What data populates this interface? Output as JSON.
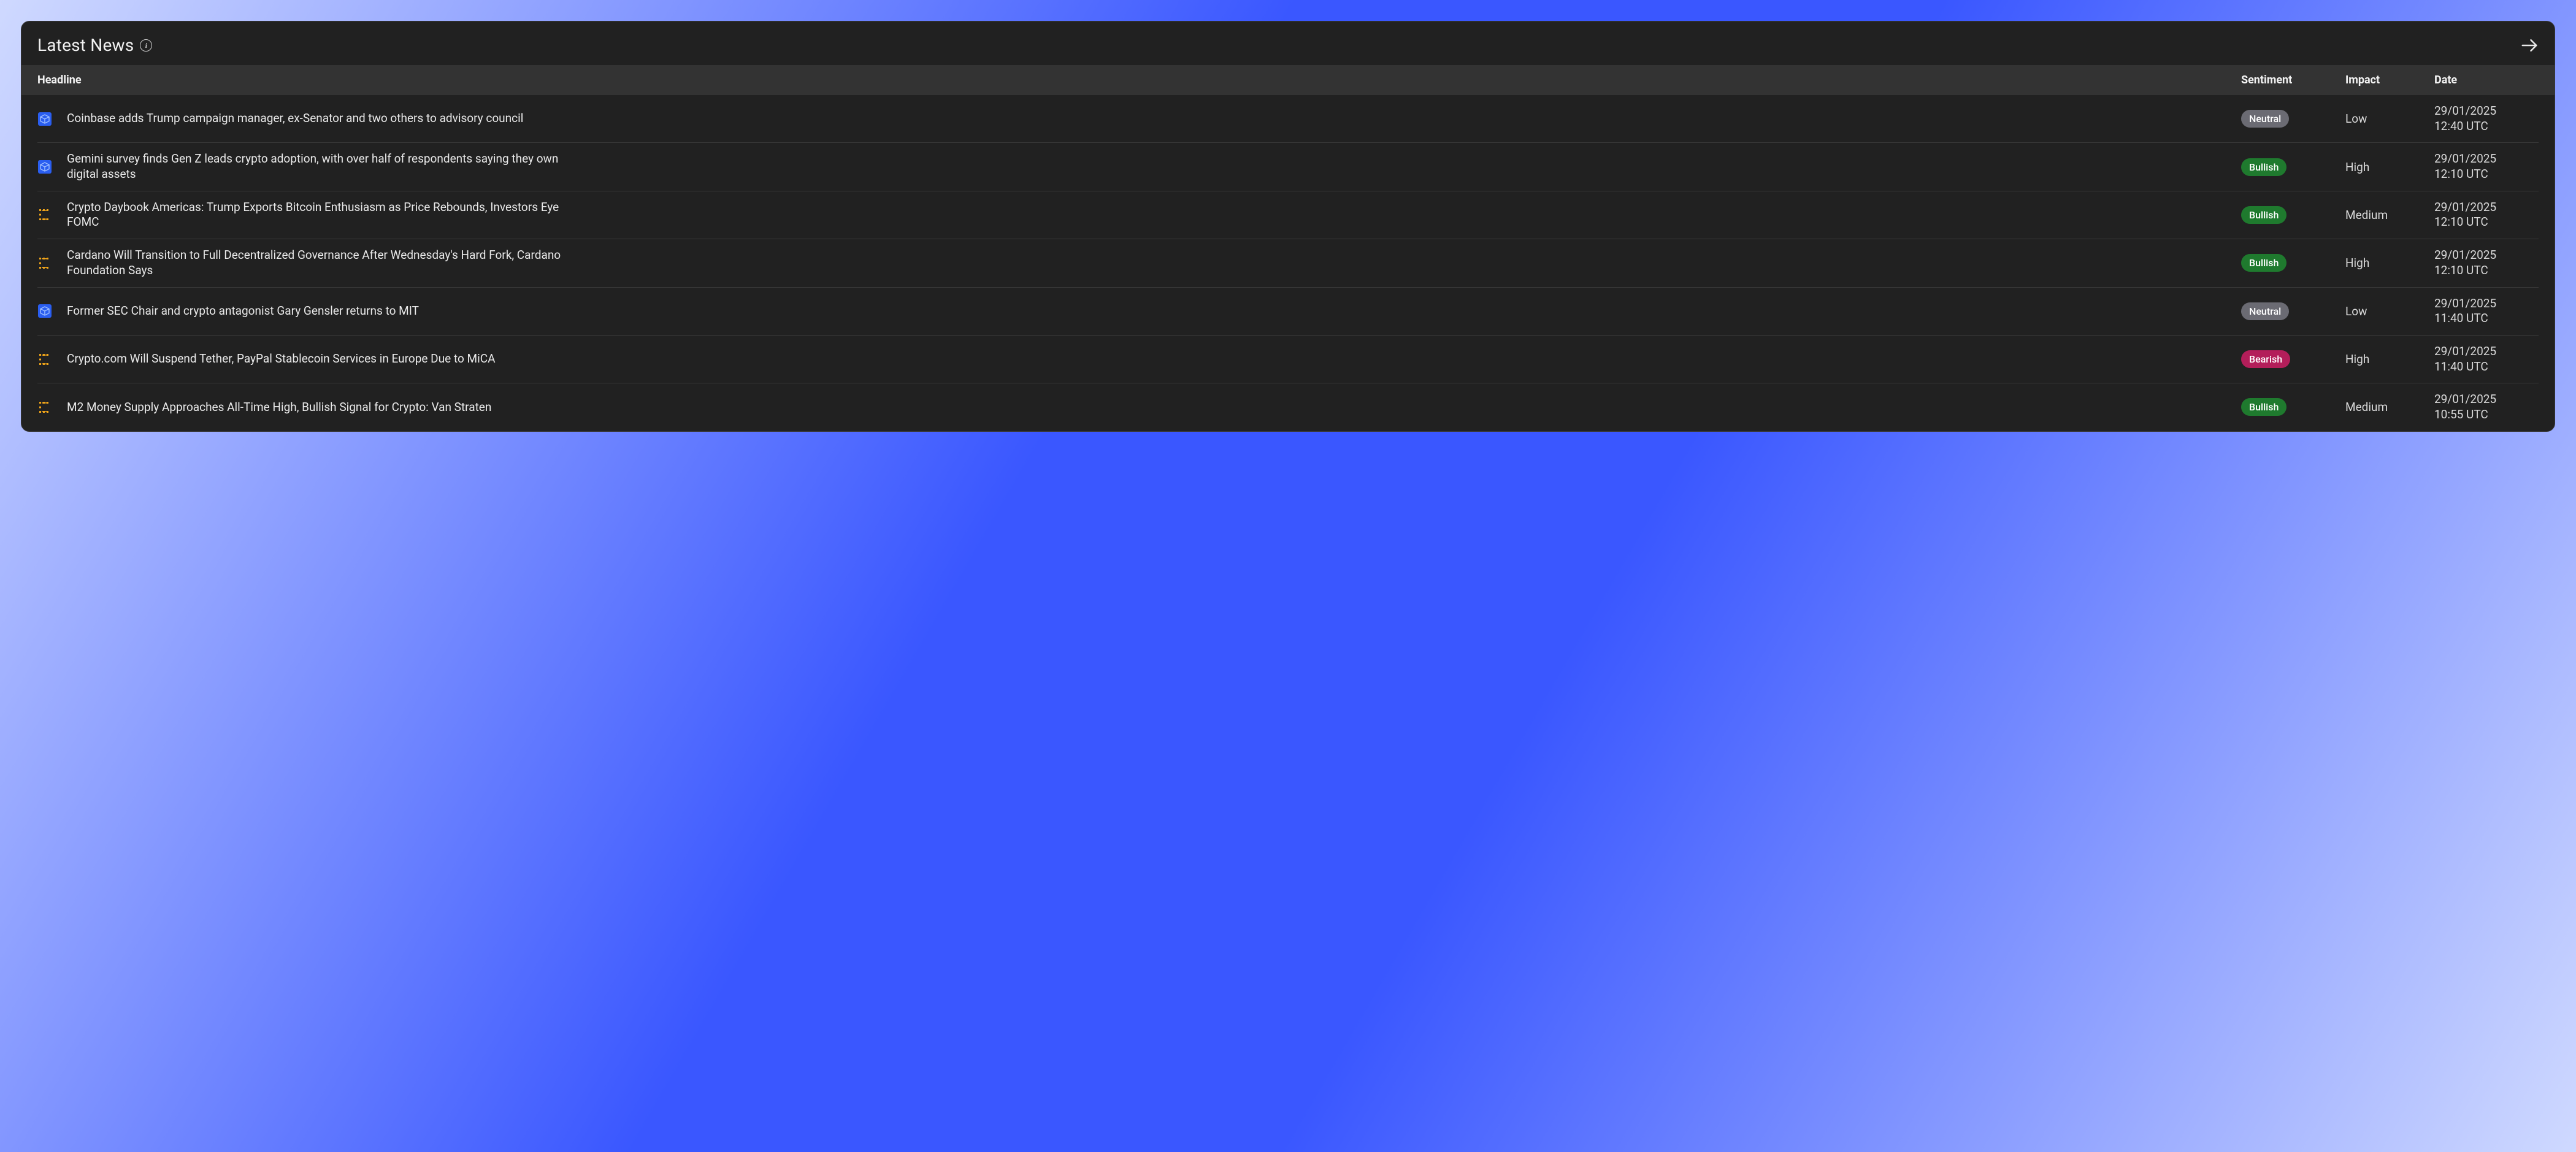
{
  "panel": {
    "title": "Latest News",
    "columns": {
      "headline": "Headline",
      "sentiment": "Sentiment",
      "impact": "Impact",
      "date": "Date"
    }
  },
  "styles": {
    "panel_bg": "#212121",
    "panel_border": "#3a3a3a",
    "header_bg": "#333333",
    "text_color": "#eaeaea",
    "row_divider": "#3a3a3a",
    "sentiment_colors": {
      "Neutral": "#6b6b73",
      "Bullish": "#1f7a2e",
      "Bearish": "#b31e5a"
    },
    "source_icon_colors": {
      "block": "#2a5ef0",
      "coindesk": "#f2a61a"
    }
  },
  "rows": [
    {
      "source": "block",
      "headline": "Coinbase adds Trump campaign manager, ex-Senator and two others to advisory council",
      "sentiment": "Neutral",
      "impact": "Low",
      "date": "29/01/2025 12:40 UTC"
    },
    {
      "source": "block",
      "headline": "Gemini survey finds Gen Z leads crypto adoption, with over half of respondents saying they own digital assets",
      "sentiment": "Bullish",
      "impact": "High",
      "date": "29/01/2025 12:10 UTC"
    },
    {
      "source": "coindesk",
      "headline": "Crypto Daybook Americas: Trump Exports Bitcoin Enthusiasm as Price Rebounds, Investors Eye FOMC",
      "sentiment": "Bullish",
      "impact": "Medium",
      "date": "29/01/2025 12:10 UTC"
    },
    {
      "source": "coindesk",
      "headline": "Cardano Will Transition to Full Decentralized Governance After Wednesday's Hard Fork, Cardano Foundation Says",
      "sentiment": "Bullish",
      "impact": "High",
      "date": "29/01/2025 12:10 UTC"
    },
    {
      "source": "block",
      "headline": "Former SEC Chair and crypto antagonist Gary Gensler returns to MIT",
      "sentiment": "Neutral",
      "impact": "Low",
      "date": "29/01/2025 11:40 UTC"
    },
    {
      "source": "coindesk",
      "headline": "Crypto.com Will Suspend Tether, PayPal Stablecoin Services in Europe Due to MiCA",
      "sentiment": "Bearish",
      "impact": "High",
      "date": "29/01/2025 11:40 UTC"
    },
    {
      "source": "coindesk",
      "headline": "M2 Money Supply Approaches All-Time High, Bullish Signal for Crypto: Van Straten",
      "sentiment": "Bullish",
      "impact": "Medium",
      "date": "29/01/2025 10:55 UTC"
    }
  ]
}
